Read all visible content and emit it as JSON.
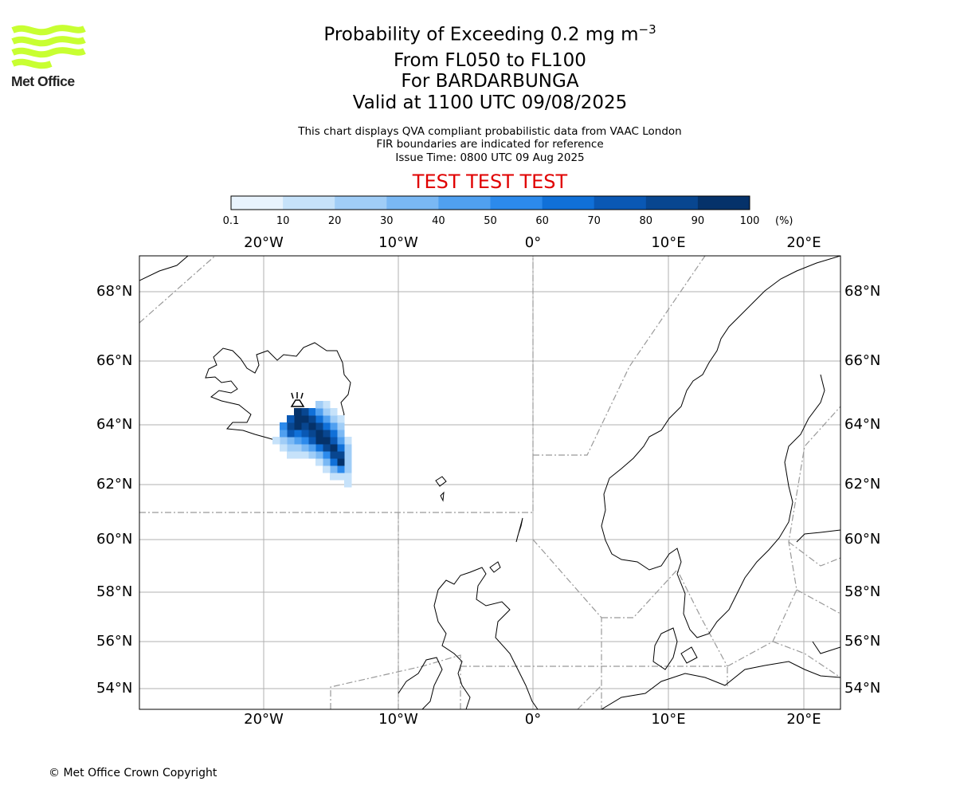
{
  "header": {
    "title_prefix": "Probability of Exceeding 0.2 mg m",
    "title_sup": "−3",
    "levels": "From FL050 to FL100",
    "volcano": "For BARDARBUNGA",
    "valid": "Valid at 1100 UTC 09/08/2025",
    "note1": "This chart displays QVA compliant probabilistic data from VAAC London",
    "note2": "FIR boundaries are indicated for reference",
    "issue": "Issue Time: 0800 UTC 09 Aug 2025",
    "test_banner": "TEST TEST TEST"
  },
  "logo": {
    "text": "Met Office",
    "color": "#c8ff32"
  },
  "colorbar": {
    "ticks": [
      "0.1",
      "10",
      "20",
      "30",
      "40",
      "50",
      "60",
      "70",
      "80",
      "90",
      "100"
    ],
    "unit": "(%)",
    "colors": [
      "#e8f3fd",
      "#c6e2fa",
      "#a0cdf7",
      "#7ab8f4",
      "#50a0f0",
      "#2c8aec",
      "#1070d8",
      "#0a58b4",
      "#084690",
      "#05326a"
    ]
  },
  "map": {
    "lat_labels": [
      "68°N",
      "66°N",
      "64°N",
      "62°N",
      "60°N",
      "58°N",
      "56°N",
      "54°N"
    ],
    "lon_labels": [
      "20°W",
      "10°W",
      "0°",
      "10°E",
      "20°E"
    ],
    "volcano_icon": "volcano-icon"
  },
  "footer": {
    "copyright": "© Met Office Crown Copyright"
  }
}
